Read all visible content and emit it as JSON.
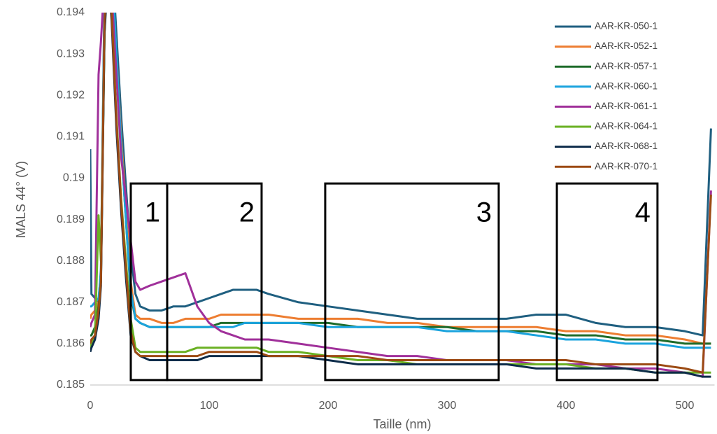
{
  "chart_data": {
    "type": "line",
    "x_label": "Taille (nm)",
    "y_label": "MALS 44° (V)",
    "x": [
      0,
      1,
      4,
      7,
      9,
      12,
      15,
      18,
      22,
      26,
      30,
      34,
      38,
      42,
      50,
      60,
      70,
      80,
      90,
      100,
      110,
      120,
      130,
      140,
      150,
      175,
      200,
      225,
      250,
      275,
      300,
      325,
      350,
      375,
      400,
      425,
      450,
      475,
      500,
      515,
      522
    ],
    "xlim": [
      0,
      525
    ],
    "xticks": [
      0,
      100,
      200,
      300,
      400,
      500
    ],
    "ylim": [
      0.185,
      0.194
    ],
    "yticks": [
      0.185,
      0.186,
      0.187,
      0.188,
      0.189,
      0.19,
      0.191,
      0.192,
      0.193,
      0.194
    ],
    "grid": false,
    "legend": "top-right",
    "series": [
      {
        "name": "AAR-KR-050-1",
        "color": "#1f5f80",
        "values": [
          0.1907,
          0.1872,
          0.1871,
          0.187,
          0.1878,
          0.1945,
          0.1965,
          0.1955,
          0.1935,
          0.1915,
          0.1898,
          0.1882,
          0.1872,
          0.1869,
          0.1868,
          0.1868,
          0.1869,
          0.1869,
          0.187,
          0.1871,
          0.1872,
          0.1873,
          0.1873,
          0.1873,
          0.1872,
          0.187,
          0.1869,
          0.1868,
          0.1867,
          0.1866,
          0.1866,
          0.1866,
          0.1866,
          0.1867,
          0.1867,
          0.1865,
          0.1864,
          0.1864,
          0.1863,
          0.1862,
          0.1912
        ]
      },
      {
        "name": "AAR-KR-052-1",
        "color": "#ed7d31",
        "values": [
          0.1866,
          0.1867,
          0.1868,
          0.187,
          0.1876,
          0.194,
          0.196,
          0.195,
          0.193,
          0.191,
          0.1893,
          0.1875,
          0.1867,
          0.1866,
          0.1866,
          0.1865,
          0.1865,
          0.1866,
          0.1866,
          0.1866,
          0.1867,
          0.1867,
          0.1867,
          0.1867,
          0.1867,
          0.1866,
          0.1866,
          0.1866,
          0.1865,
          0.1865,
          0.1864,
          0.1864,
          0.1864,
          0.1864,
          0.1863,
          0.1863,
          0.1862,
          0.1862,
          0.1861,
          0.186,
          0.186
        ]
      },
      {
        "name": "AAR-KR-057-1",
        "color": "#1e6b2a",
        "values": [
          0.1862,
          0.1862,
          0.1864,
          0.1869,
          0.1875,
          0.1935,
          0.1958,
          0.1948,
          0.1928,
          0.1908,
          0.189,
          0.1872,
          0.1866,
          0.1865,
          0.1864,
          0.1864,
          0.1864,
          0.1864,
          0.1864,
          0.1864,
          0.1865,
          0.1865,
          0.1865,
          0.1865,
          0.1865,
          0.1865,
          0.1865,
          0.1864,
          0.1864,
          0.1864,
          0.1864,
          0.1863,
          0.1863,
          0.1863,
          0.1862,
          0.1862,
          0.1861,
          0.1861,
          0.186,
          0.186,
          0.186
        ]
      },
      {
        "name": "AAR-KR-060-1",
        "color": "#1aa3dd",
        "values": [
          0.1869,
          0.1869,
          0.187,
          0.1871,
          0.1877,
          0.1942,
          0.1962,
          0.1952,
          0.193,
          0.1908,
          0.189,
          0.1873,
          0.1866,
          0.1865,
          0.1864,
          0.1864,
          0.1864,
          0.1864,
          0.1864,
          0.1864,
          0.1864,
          0.1864,
          0.1865,
          0.1865,
          0.1865,
          0.1865,
          0.1864,
          0.1864,
          0.1864,
          0.1864,
          0.1863,
          0.1863,
          0.1863,
          0.1862,
          0.1861,
          0.1861,
          0.186,
          0.186,
          0.1859,
          0.1859,
          0.1859
        ]
      },
      {
        "name": "AAR-KR-061-1",
        "color": "#a0309a",
        "values": [
          0.1864,
          0.1865,
          0.1867,
          0.1925,
          0.1933,
          0.1948,
          0.1955,
          0.1945,
          0.1925,
          0.1905,
          0.1895,
          0.1885,
          0.1875,
          0.1873,
          0.1874,
          0.1875,
          0.1876,
          0.1877,
          0.1869,
          0.1865,
          0.1863,
          0.1862,
          0.1861,
          0.1861,
          0.1861,
          0.186,
          0.1859,
          0.1858,
          0.1857,
          0.1857,
          0.1856,
          0.1856,
          0.1856,
          0.1855,
          0.1855,
          0.1855,
          0.1854,
          0.1854,
          0.1853,
          0.1852,
          0.1897
        ]
      },
      {
        "name": "AAR-KR-064-1",
        "color": "#6ab023",
        "values": [
          0.1859,
          0.186,
          0.1862,
          0.1891,
          0.188,
          0.1935,
          0.1955,
          0.194,
          0.1915,
          0.1895,
          0.188,
          0.1866,
          0.1859,
          0.1858,
          0.1858,
          0.1858,
          0.1858,
          0.1858,
          0.1859,
          0.1859,
          0.1859,
          0.1859,
          0.1859,
          0.1859,
          0.1858,
          0.1858,
          0.1857,
          0.1856,
          0.1856,
          0.1855,
          0.1855,
          0.1855,
          0.1855,
          0.1855,
          0.1855,
          0.1854,
          0.1854,
          0.1853,
          0.1853,
          0.1853,
          0.1853
        ]
      },
      {
        "name": "AAR-KR-068-1",
        "color": "#0d2c4a",
        "values": [
          0.1858,
          0.1859,
          0.1861,
          0.1866,
          0.1874,
          0.1935,
          0.195,
          0.1938,
          0.1912,
          0.1892,
          0.1876,
          0.1862,
          0.1858,
          0.1857,
          0.1856,
          0.1856,
          0.1856,
          0.1856,
          0.1856,
          0.1857,
          0.1857,
          0.1857,
          0.1857,
          0.1857,
          0.1857,
          0.1857,
          0.1856,
          0.1855,
          0.1855,
          0.1855,
          0.1855,
          0.1855,
          0.1855,
          0.1854,
          0.1854,
          0.1854,
          0.1854,
          0.1853,
          0.1853,
          0.1852,
          0.1852
        ]
      },
      {
        "name": "AAR-KR-070-1",
        "color": "#9c4a13",
        "values": [
          0.186,
          0.1861,
          0.1862,
          0.1868,
          0.1875,
          0.1938,
          0.1952,
          0.194,
          0.1914,
          0.1894,
          0.1878,
          0.1863,
          0.1858,
          0.1857,
          0.1857,
          0.1857,
          0.1857,
          0.1857,
          0.1857,
          0.1858,
          0.1858,
          0.1858,
          0.1858,
          0.1858,
          0.1857,
          0.1857,
          0.1857,
          0.1857,
          0.1856,
          0.1856,
          0.1856,
          0.1856,
          0.1856,
          0.1856,
          0.1856,
          0.1855,
          0.1855,
          0.1855,
          0.1854,
          0.1853,
          0.1896
        ]
      }
    ],
    "annotations": [
      {
        "text": "1",
        "x": [
          34.1,
          64.7
        ],
        "y": [
          0.18512,
          0.18987
        ]
      },
      {
        "text": "2",
        "x": [
          64.7,
          144.1
        ],
        "y": [
          0.18512,
          0.18987
        ]
      },
      {
        "text": "3",
        "x": [
          197.6,
          343.5
        ],
        "y": [
          0.18512,
          0.18987
        ]
      },
      {
        "text": "4",
        "x": [
          392.4,
          477
        ],
        "y": [
          0.18512,
          0.18987
        ]
      }
    ]
  }
}
